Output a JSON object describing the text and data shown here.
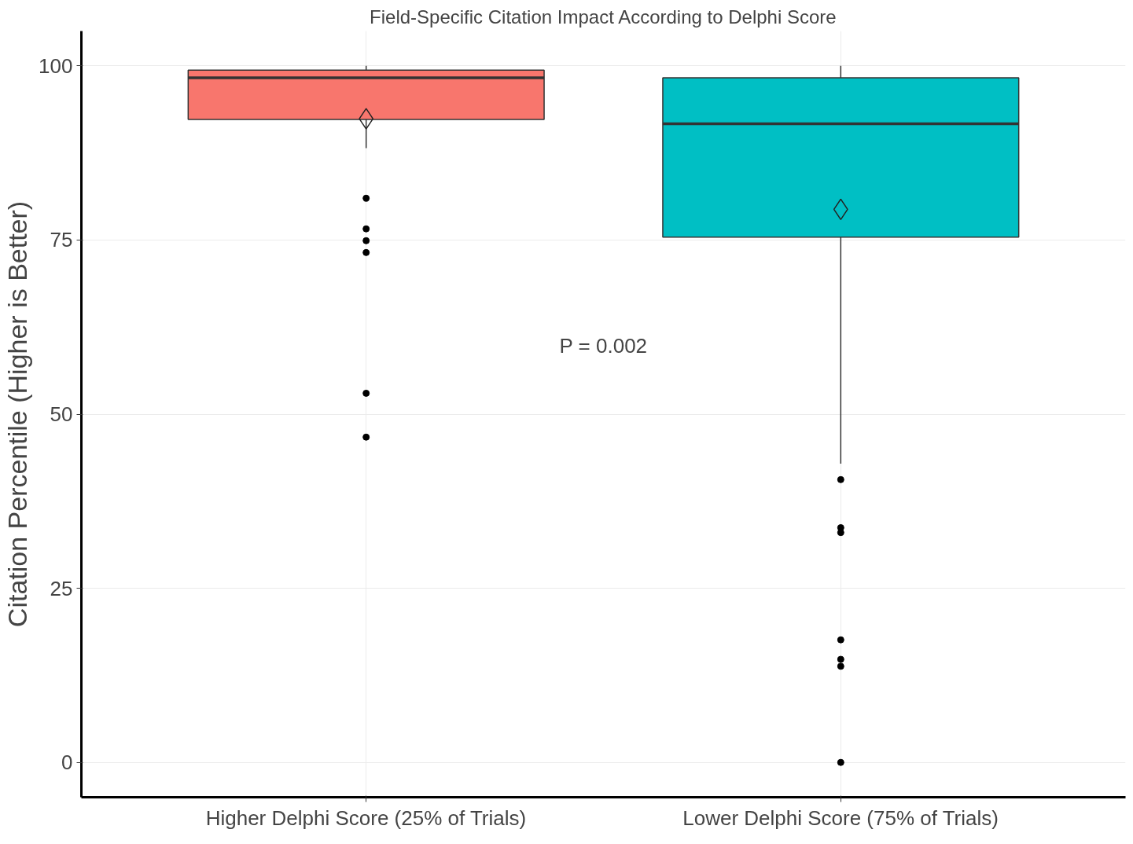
{
  "chart_data": {
    "type": "box",
    "title": "Field-Specific Citation Impact According to Delphi Score",
    "ylabel": "Citation Percentile (Higher is Better)",
    "categories": [
      "Higher Delphi Score (25% of Trials)",
      "Lower Delphi Score (75% of Trials)"
    ],
    "colors": [
      "#f8766d",
      "#00bfc4"
    ],
    "boxes": [
      {
        "low": 88.2,
        "q1": 92.3,
        "median": 98.3,
        "q3": 99.4,
        "high": 100,
        "mean": 92.4,
        "outliers": [
          81.0,
          76.6,
          74.9,
          73.2,
          53.0,
          46.7
        ]
      },
      {
        "low": 42.9,
        "q1": 75.4,
        "median": 91.7,
        "q3": 98.3,
        "high": 100,
        "mean": 79.4,
        "outliers": [
          40.6,
          33.7,
          33.0,
          17.6,
          14.8,
          13.8,
          0
        ]
      }
    ],
    "ylim": [
      -5,
      105
    ],
    "yticks": [
      0,
      25,
      50,
      75,
      100
    ],
    "grid": true,
    "annotations": [
      "P = 0.002"
    ]
  }
}
